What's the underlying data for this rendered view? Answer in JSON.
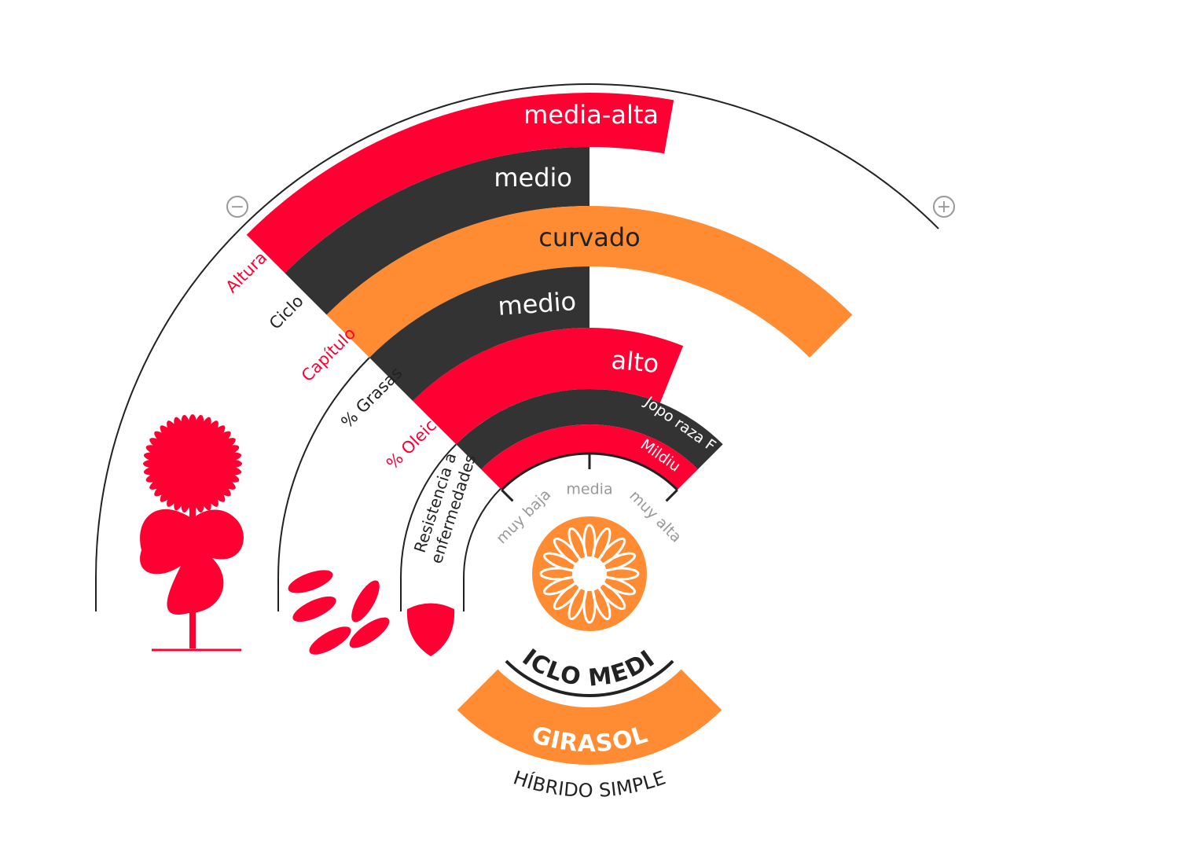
{
  "traits": [
    {
      "label": "Altura",
      "value": "media-alta"
    },
    {
      "label": "Ciclo",
      "value": "medio"
    },
    {
      "label": "Capítulo",
      "value": "curvado"
    },
    {
      "label": "% Grasas",
      "value": "medio"
    },
    {
      "label": "% Oleico",
      "value": "alto"
    }
  ],
  "resistance": {
    "label": [
      "Resistencia a",
      "enfermedades"
    ],
    "items": [
      "Jopo raza F",
      "Mildiu"
    ],
    "scale": [
      "muy baja",
      "media",
      "muy alta"
    ]
  },
  "scale_ends": [
    "−",
    "+"
  ],
  "badge": {
    "cycle": "CICLO MEDIO",
    "crop": "GIRASOL",
    "hybrid": "HÍBRIDO SIMPLE"
  }
}
